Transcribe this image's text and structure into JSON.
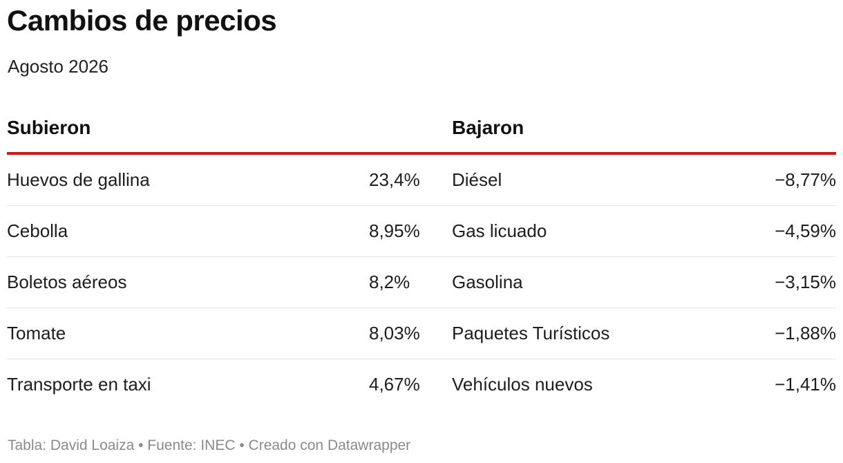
{
  "title": "Cambios de precios",
  "subtitle": "Agosto 2026",
  "chart_data": {
    "type": "table",
    "columns": [
      "Subieron",
      "",
      "Bajaron",
      ""
    ],
    "subieron_header": "Subieron",
    "bajaron_header": "Bajaron",
    "rows": [
      {
        "subieron_item": "Huevos de gallina",
        "subieron_value": "23,4%",
        "bajaron_item": "Diésel",
        "bajaron_value": "−8,77%"
      },
      {
        "subieron_item": "Cebolla",
        "subieron_value": "8,95%",
        "bajaron_item": "Gas licuado",
        "bajaron_value": "−4,59%"
      },
      {
        "subieron_item": "Boletos aéreos",
        "subieron_value": "8,2%",
        "bajaron_item": "Gasolina",
        "bajaron_value": "−3,15%"
      },
      {
        "subieron_item": "Tomate",
        "subieron_value": "8,03%",
        "bajaron_item": "Paquetes Turísticos",
        "bajaron_value": "−1,88%"
      },
      {
        "subieron_item": "Transporte en taxi",
        "subieron_value": "4,67%",
        "bajaron_item": "Vehículos nuevos",
        "bajaron_value": "−1,41%"
      }
    ]
  },
  "footer": "Tabla: David Loaiza • Fuente: INEC • Creado con Datawrapper",
  "colors": {
    "header_rule": "#c8181e",
    "row_divider": "#e3e3e3",
    "footer_text": "#8a8a8a"
  }
}
